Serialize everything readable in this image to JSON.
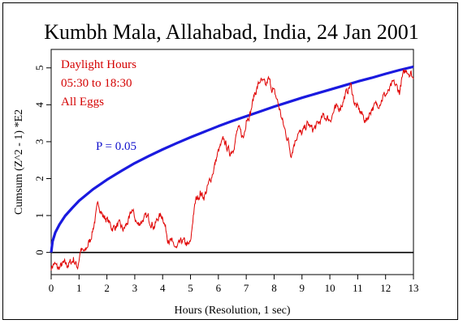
{
  "chart_data": {
    "type": "line",
    "title": "Kumbh Mala, Allahabad, India, 24 Jan 2001",
    "xlabel": "Hours (Resolution, 1 sec)",
    "ylabel": "Cumsum (Z^2 - 1) *E2",
    "xlim": [
      0,
      13
    ],
    "ylim": [
      -0.6,
      5.5
    ],
    "xticks": [
      "0",
      "1",
      "2",
      "3",
      "4",
      "5",
      "6",
      "7",
      "8",
      "9",
      "10",
      "11",
      "12",
      "13"
    ],
    "yticks": [
      "0",
      "1",
      "2",
      "3",
      "4",
      "5"
    ],
    "annotations": [
      "Daylight Hours",
      "05:30 to 18:30",
      "All Eggs"
    ],
    "reference_label": "P = 0.05",
    "colors": {
      "data": "#e00000",
      "reference": "#1a1adf",
      "baseline": "#000000"
    },
    "series": [
      {
        "style": "red-noisy-line",
        "x": [
          0,
          0.1,
          0.25,
          0.45,
          0.6,
          0.8,
          0.95,
          1.05,
          1.2,
          1.4,
          1.55,
          1.7,
          1.85,
          2.0,
          2.2,
          2.4,
          2.6,
          2.8,
          2.9,
          3.1,
          3.3,
          3.5,
          3.7,
          3.85,
          4.0,
          4.2,
          4.35,
          4.5,
          4.7,
          4.9,
          5.0,
          5.1,
          5.2,
          5.35,
          5.5,
          5.7,
          5.85,
          6.0,
          6.2,
          6.4,
          6.55,
          6.7,
          6.9,
          7.0,
          7.15,
          7.3,
          7.5,
          7.7,
          7.8,
          7.95,
          8.1,
          8.2,
          8.35,
          8.5,
          8.6,
          8.7,
          8.85,
          9.0,
          9.2,
          9.4,
          9.6,
          9.8,
          10.0,
          10.2,
          10.4,
          10.6,
          10.75,
          10.9,
          11.1,
          11.3,
          11.5,
          11.7,
          11.9,
          12.1,
          12.3,
          12.5,
          12.6,
          12.75,
          12.9,
          13.0
        ],
        "values": [
          -0.4,
          -0.3,
          -0.45,
          -0.3,
          -0.35,
          -0.2,
          -0.4,
          0.05,
          0.0,
          0.35,
          0.8,
          1.35,
          1.0,
          0.9,
          0.65,
          0.75,
          0.6,
          0.9,
          1.15,
          0.75,
          0.9,
          0.95,
          0.7,
          0.95,
          1.0,
          0.35,
          0.25,
          0.1,
          0.3,
          0.2,
          0.25,
          1.0,
          1.45,
          1.6,
          1.5,
          1.95,
          2.3,
          2.75,
          3.05,
          2.7,
          2.85,
          3.35,
          3.1,
          3.6,
          3.8,
          4.3,
          4.65,
          4.5,
          4.7,
          4.4,
          4.15,
          3.85,
          3.4,
          3.05,
          2.65,
          2.9,
          3.25,
          3.2,
          3.5,
          3.3,
          3.5,
          3.7,
          3.6,
          3.9,
          3.95,
          4.35,
          4.55,
          4.0,
          3.8,
          3.55,
          3.9,
          4.0,
          4.2,
          4.35,
          4.6,
          4.35,
          4.75,
          4.95,
          4.85,
          4.7
        ]
      },
      {
        "style": "blue-envelope",
        "x": [
          0,
          0.05,
          0.15,
          0.3,
          0.5,
          0.75,
          1,
          1.5,
          2,
          2.5,
          3,
          3.5,
          4,
          4.5,
          5,
          5.5,
          6,
          6.5,
          7,
          7.5,
          8,
          8.5,
          9,
          9.5,
          10,
          10.5,
          11,
          11.5,
          12,
          12.5,
          13
        ],
        "values": [
          0.0,
          0.3,
          0.54,
          0.76,
          0.99,
          1.2,
          1.4,
          1.71,
          1.97,
          2.2,
          2.42,
          2.61,
          2.79,
          2.96,
          3.12,
          3.27,
          3.42,
          3.56,
          3.69,
          3.82,
          3.95,
          4.07,
          4.19,
          4.3,
          4.41,
          4.52,
          4.63,
          4.73,
          4.84,
          4.94,
          5.03
        ]
      },
      {
        "style": "black-baseline",
        "x": [
          0,
          13
        ],
        "values": [
          0,
          0
        ]
      }
    ]
  }
}
